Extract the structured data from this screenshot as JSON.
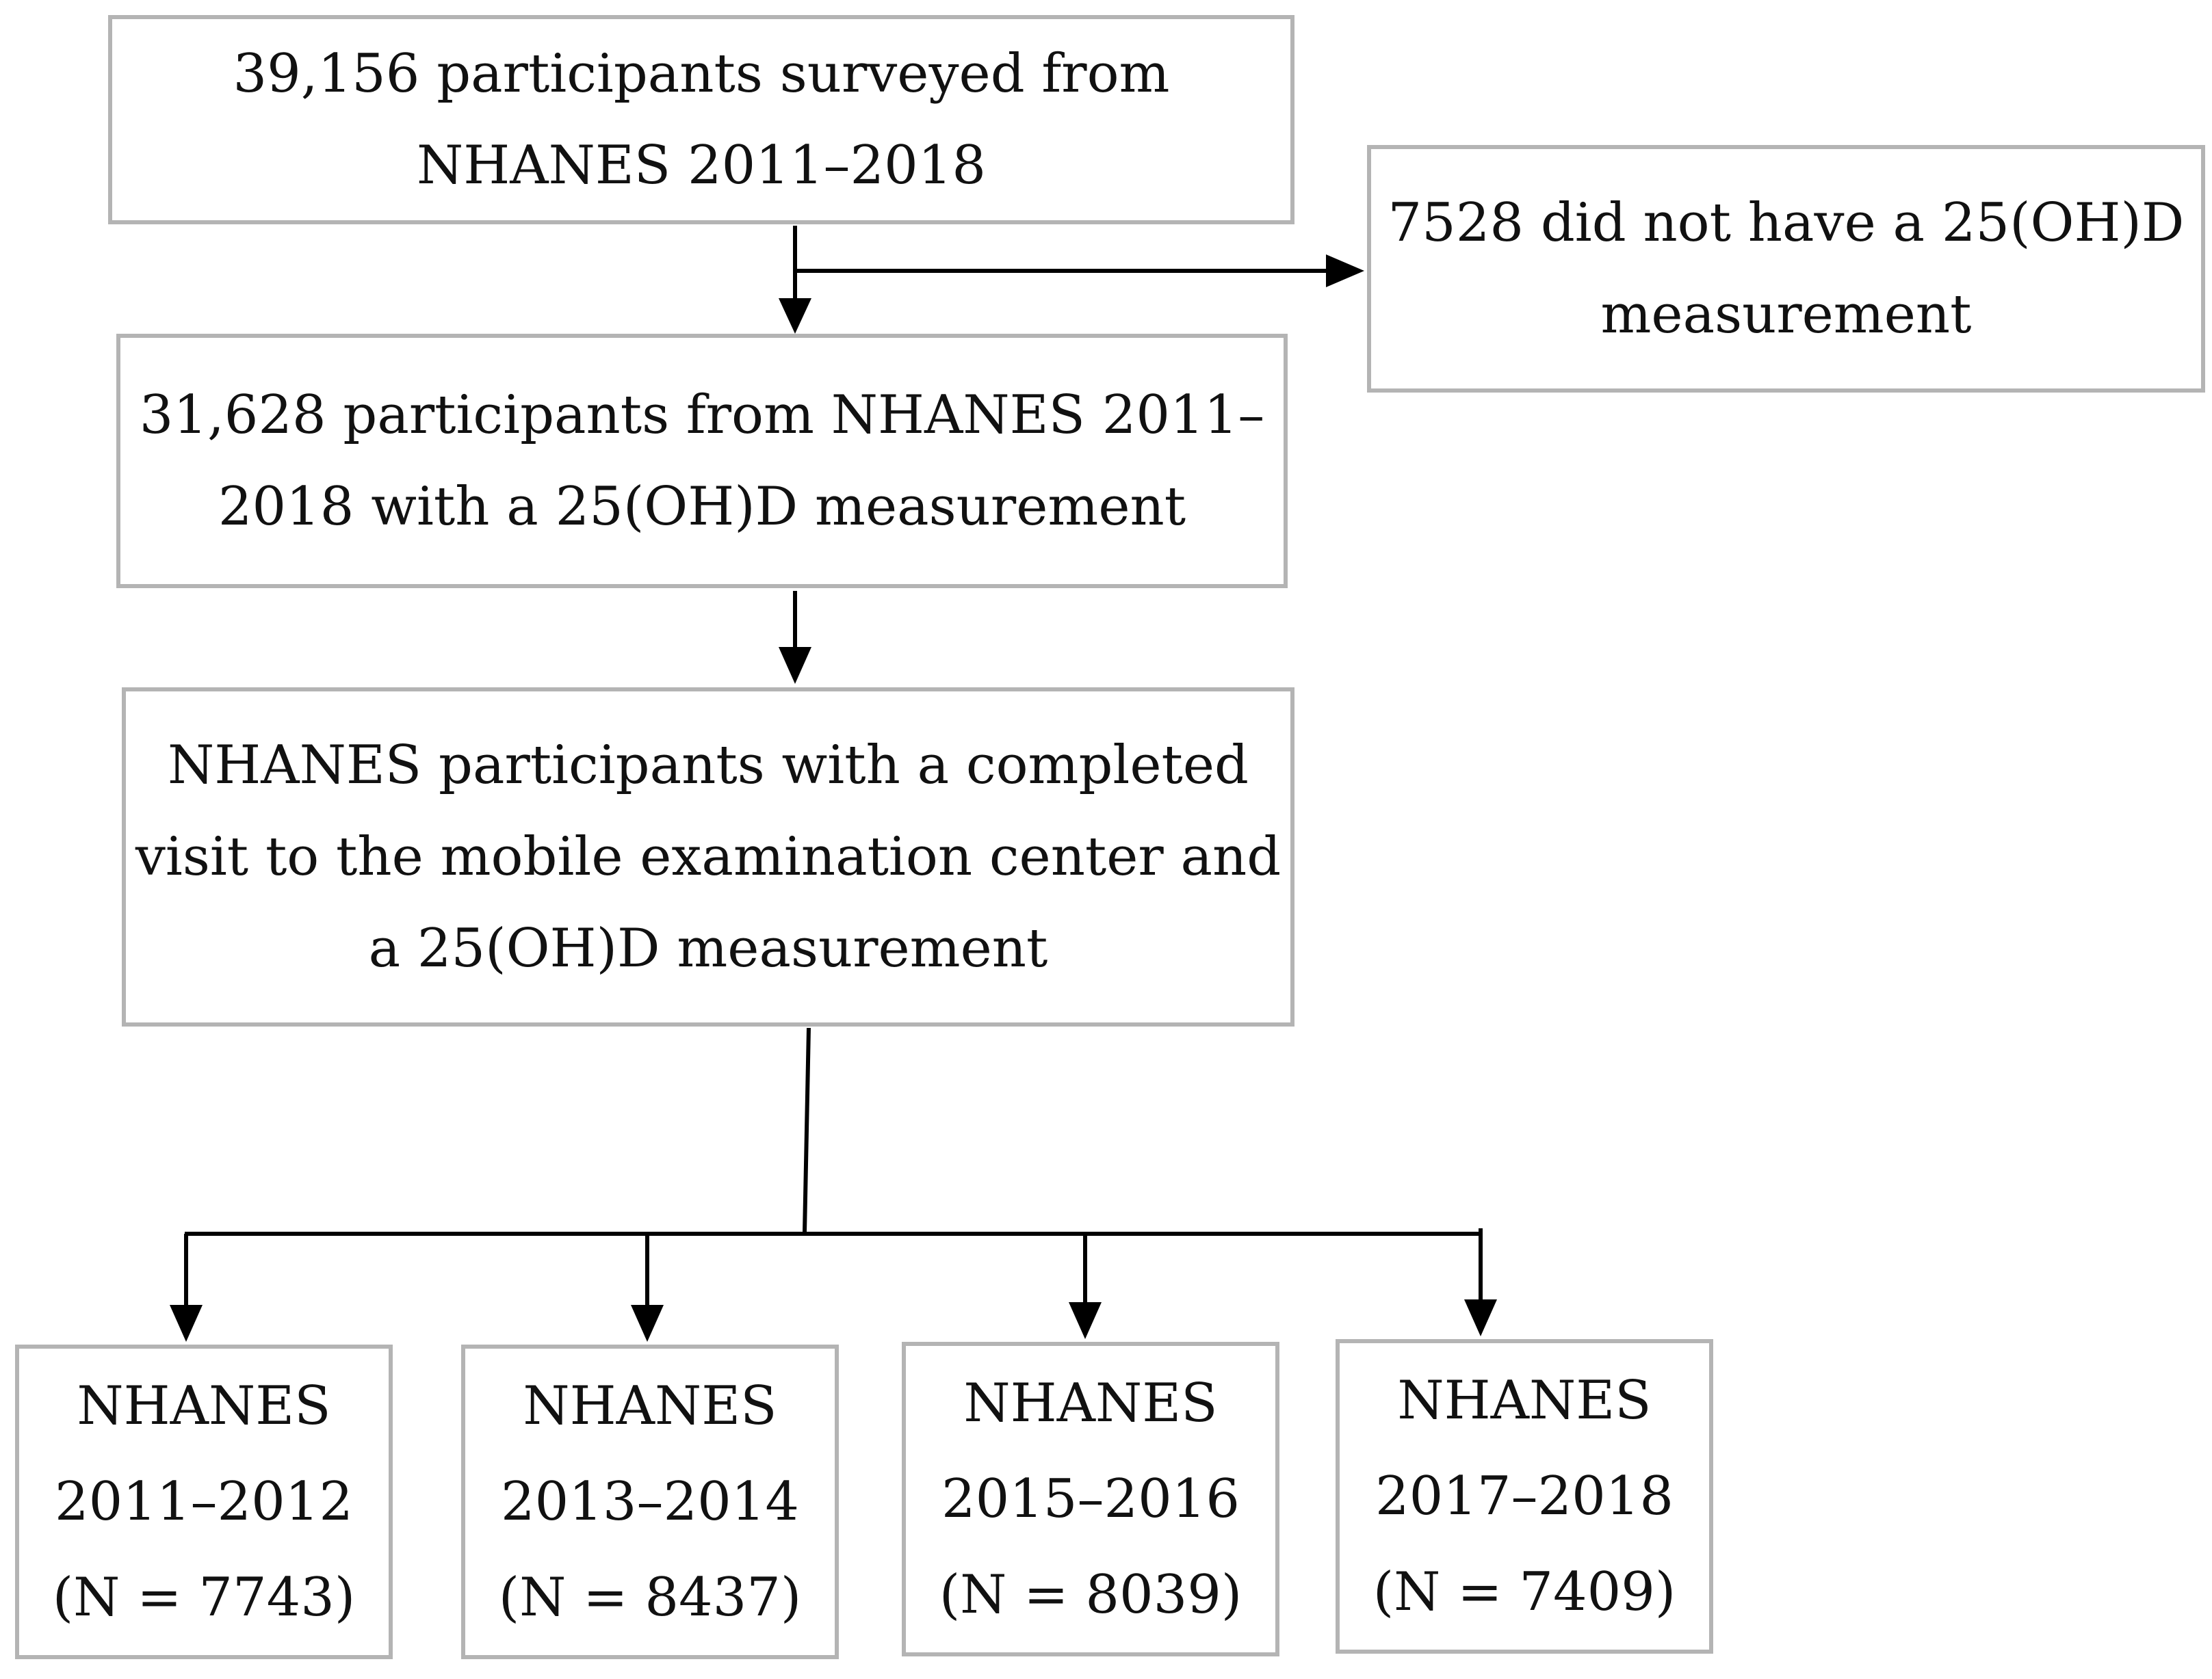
{
  "boxes": {
    "surveyed": {
      "lines": [
        "39,156 participants surveyed from",
        "NHANES 2011–2018"
      ]
    },
    "excluded": {
      "lines": [
        "7528 did not have a 25(OH)D",
        "measurement"
      ]
    },
    "with_measurement": {
      "lines": [
        "31,628 participants from NHANES 2011–",
        "2018 with a 25(OH)D measurement"
      ]
    },
    "completed_visit": {
      "lines": [
        "NHANES participants with a completed",
        "visit to the mobile examination center and",
        "a 25(OH)D measurement"
      ]
    },
    "cycles": [
      {
        "label": "NHANES",
        "years": "2011–2012",
        "n": "(N = 7743)"
      },
      {
        "label": "NHANES",
        "years": "2013–2014",
        "n": "(N = 8437)"
      },
      {
        "label": "NHANES",
        "years": "2015–2016",
        "n": "(N = 8039)"
      },
      {
        "label": "NHANES",
        "years": "2017–2018",
        "n": "(N = 7409)"
      }
    ]
  },
  "colors": {
    "box_border": "#b4b4b4",
    "arrow": "#000000",
    "text": "#111111"
  }
}
